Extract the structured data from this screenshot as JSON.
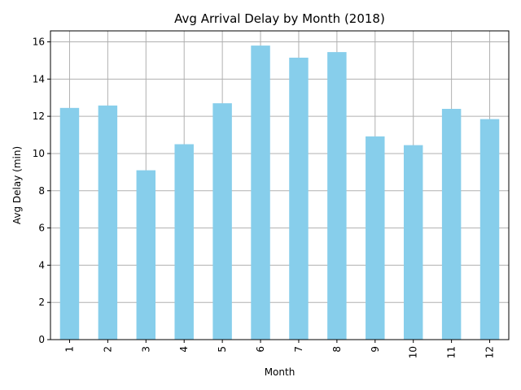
{
  "chart_data": {
    "type": "bar",
    "title": "Avg Arrival Delay by Month (2018)",
    "xlabel": "Month",
    "ylabel": "Avg Delay (min)",
    "categories": [
      "1",
      "2",
      "3",
      "4",
      "5",
      "6",
      "7",
      "8",
      "9",
      "10",
      "11",
      "12"
    ],
    "values": [
      12.45,
      12.58,
      9.1,
      10.5,
      12.7,
      15.8,
      15.15,
      15.45,
      10.92,
      10.45,
      12.4,
      11.85
    ],
    "ylim": [
      0,
      16.59
    ],
    "yticks": [
      0,
      2,
      4,
      6,
      8,
      10,
      12,
      14,
      16
    ],
    "ytick_labels": [
      "0",
      "2",
      "4",
      "6",
      "8",
      "10",
      "12",
      "14",
      "16"
    ],
    "grid": true,
    "bar_color": "#87ceeb"
  }
}
